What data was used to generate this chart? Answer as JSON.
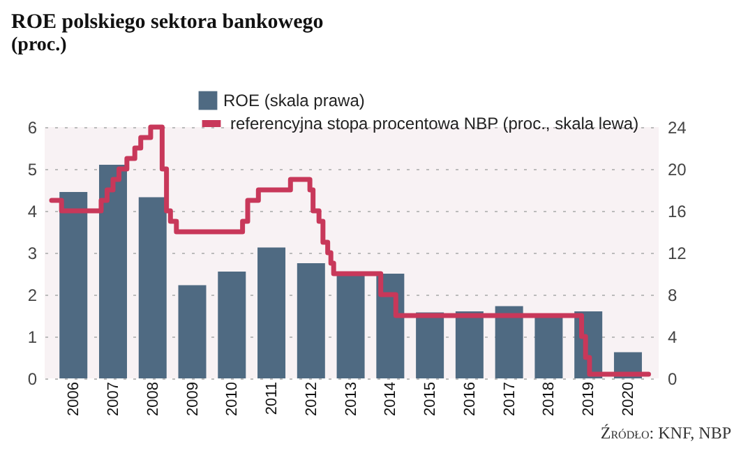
{
  "chart_data": {
    "type": "bar",
    "title": "ROE polskiego sektora bankowego",
    "subtitle": "(proc.)",
    "x": [
      2006,
      2007,
      2008,
      2009,
      2010,
      2011,
      2012,
      2013,
      2014,
      2015,
      2016,
      2017,
      2018,
      2019,
      2020
    ],
    "xlim": [
      2005.45,
      2020.6
    ],
    "xticks": [
      2006,
      2007,
      2008,
      2009,
      2010,
      2011,
      2012,
      2013,
      2014,
      2015,
      2016,
      2017,
      2018,
      2019,
      2020
    ],
    "ylim": [
      0,
      6
    ],
    "yticks": [
      0,
      1,
      2,
      3,
      4,
      5,
      6
    ],
    "y2lim": [
      0,
      24
    ],
    "y2ticks": [
      0,
      4,
      8,
      12,
      16,
      20,
      24
    ],
    "grid": "y",
    "legend": "top",
    "series": [
      {
        "name": "ROE (skala prawa)",
        "axis": "y2",
        "color": "#4f6a82",
        "values": [
          17.8,
          20.4,
          17.3,
          8.9,
          10.2,
          12.5,
          11.0,
          9.8,
          10.0,
          6.3,
          6.4,
          6.9,
          6.1,
          6.4,
          2.5
        ]
      },
      {
        "name": "referencyjna stopa procentowa NBP (proc., skala lewa)",
        "type": "step",
        "color": "#c8385a",
        "x": [
          2005.45,
          2005.7,
          2006.7,
          2006.85,
          2007.0,
          2007.15,
          2007.35,
          2007.55,
          2007.7,
          2007.95,
          2008.24,
          2008.35,
          2008.45,
          2008.6,
          2010.27,
          2010.4,
          2010.67,
          2011.48,
          2011.97,
          2012.05,
          2012.2,
          2012.3,
          2012.42,
          2012.5,
          2012.57,
          2013.76,
          2014.14,
          2018.83,
          2018.93,
          2019.03,
          2020.52
        ],
        "values": [
          4.25,
          4.0,
          4.25,
          4.5,
          4.75,
          5.0,
          5.25,
          5.5,
          5.75,
          6.0,
          5.0,
          4.0,
          3.75,
          3.5,
          3.75,
          4.25,
          4.5,
          4.75,
          4.5,
          4.0,
          3.75,
          3.25,
          3.0,
          2.75,
          2.5,
          2.0,
          1.5,
          1.0,
          0.5,
          0.1,
          0.1
        ]
      }
    ],
    "annotations": [
      "Źródło: KNF, NBP"
    ]
  }
}
